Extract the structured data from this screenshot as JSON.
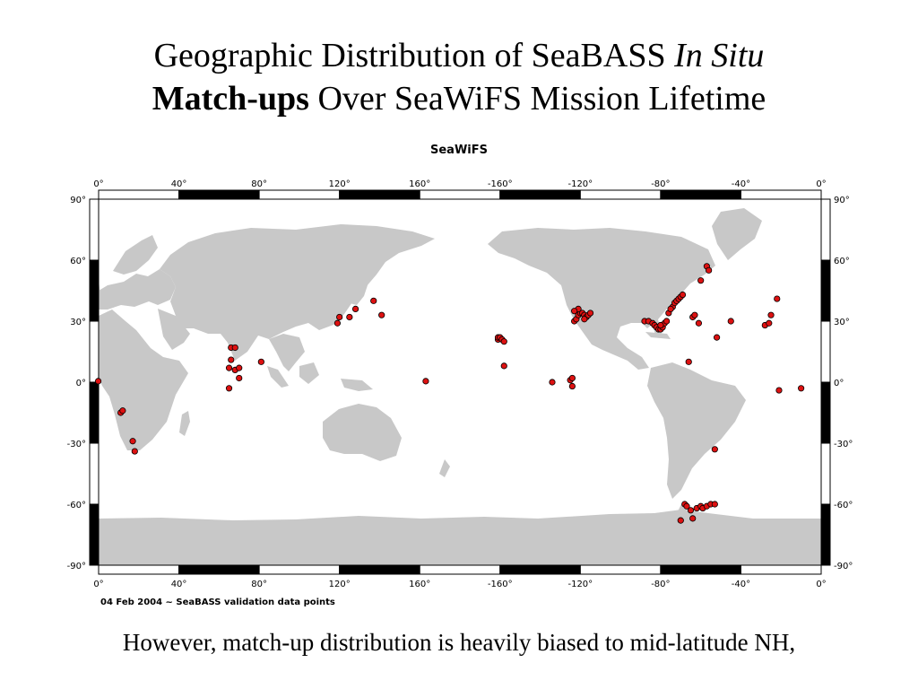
{
  "title": {
    "line1_prefix": "Geographic Distribution of SeaBASS",
    "line1_italic": "In Situ",
    "line2_bold": "Match-ups",
    "line2_rest": "Over SeaWiFS Mission Lifetime"
  },
  "map": {
    "heading": "SeaWiFS",
    "lon_ticks": [
      "0°",
      "40°",
      "80°",
      "120°",
      "160°",
      "-160°",
      "-120°",
      "-80°",
      "-40°",
      "0°"
    ],
    "lat_ticks": [
      "90°",
      "60°",
      "30°",
      "0°",
      "-30°",
      "-60°",
      "-90°"
    ],
    "footnote": "04 Feb 2004 ~ SeaBASS validation data points",
    "colors": {
      "land": "#c8c8c8",
      "ocean": "#ffffff",
      "point": "#dd1111",
      "point_outline": "#000000",
      "frame": "#000000"
    },
    "points": [
      [
        -0.2,
        0.5
      ],
      [
        11,
        -15
      ],
      [
        12,
        -14
      ],
      [
        17,
        -29
      ],
      [
        18,
        -34
      ],
      [
        65,
        -3
      ],
      [
        65,
        7
      ],
      [
        66,
        11
      ],
      [
        66,
        17
      ],
      [
        68,
        17
      ],
      [
        68,
        6
      ],
      [
        70,
        2
      ],
      [
        70,
        7
      ],
      [
        81,
        10
      ],
      [
        119,
        29
      ],
      [
        120,
        32
      ],
      [
        125,
        32
      ],
      [
        128,
        36
      ],
      [
        137,
        40
      ],
      [
        141,
        33
      ],
      [
        163,
        0.5
      ],
      [
        -161,
        21
      ],
      [
        -161,
        22
      ],
      [
        -160,
        22
      ],
      [
        -159,
        21
      ],
      [
        -158,
        20
      ],
      [
        -158,
        8
      ],
      [
        -125,
        1
      ],
      [
        -124,
        2
      ],
      [
        -124,
        -2
      ],
      [
        -134,
        0
      ],
      [
        -123,
        30
      ],
      [
        -122,
        31
      ],
      [
        -121,
        33
      ],
      [
        -120,
        34
      ],
      [
        -119,
        34
      ],
      [
        -118,
        33
      ],
      [
        -117,
        32
      ],
      [
        -116,
        33
      ],
      [
        -115,
        34
      ],
      [
        -121,
        36
      ],
      [
        -123,
        35
      ],
      [
        -118,
        31
      ],
      [
        -88,
        30
      ],
      [
        -86,
        30
      ],
      [
        -84,
        29
      ],
      [
        -83,
        28
      ],
      [
        -82,
        27
      ],
      [
        -81,
        26
      ],
      [
        -80,
        26
      ],
      [
        -79,
        27
      ],
      [
        -78,
        29
      ],
      [
        -77,
        30
      ],
      [
        -76,
        34
      ],
      [
        -74,
        37
      ],
      [
        -73,
        39
      ],
      [
        -72,
        40
      ],
      [
        -71,
        41
      ],
      [
        -70,
        42
      ],
      [
        -69,
        43
      ],
      [
        -80,
        28
      ],
      [
        -75,
        36
      ],
      [
        -64,
        32
      ],
      [
        -63,
        33
      ],
      [
        -61,
        29
      ],
      [
        -57,
        57
      ],
      [
        -56,
        55
      ],
      [
        -60,
        50
      ],
      [
        -52,
        22
      ],
      [
        -66,
        10
      ],
      [
        -45,
        30
      ],
      [
        -28,
        28
      ],
      [
        -25,
        33
      ],
      [
        -22,
        41
      ],
      [
        -26,
        29
      ],
      [
        -21,
        -4
      ],
      [
        -10,
        -3
      ],
      [
        -53,
        -33
      ],
      [
        -68,
        -60
      ],
      [
        -67,
        -61
      ],
      [
        -65,
        -63
      ],
      [
        -64,
        -67
      ],
      [
        -62,
        -62
      ],
      [
        -60,
        -61
      ],
      [
        -59,
        -62
      ],
      [
        -57,
        -61
      ],
      [
        -55,
        -60
      ],
      [
        -53,
        -60
      ],
      [
        -70,
        -68
      ]
    ]
  }
}
